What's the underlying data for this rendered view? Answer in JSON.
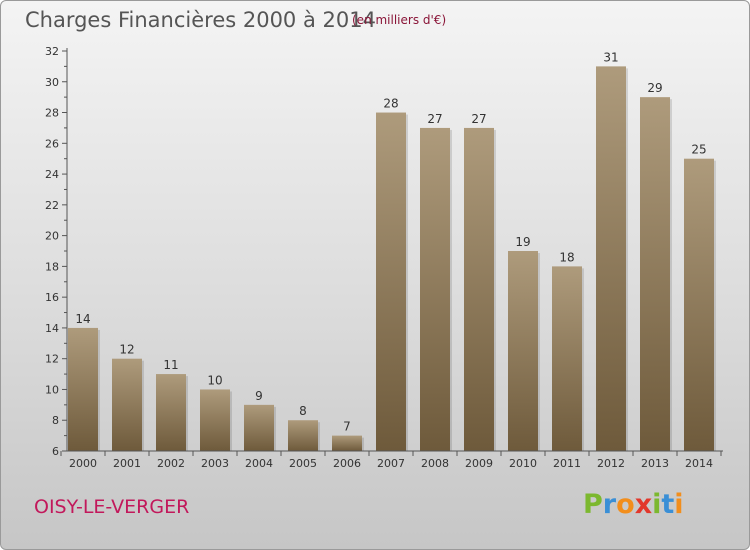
{
  "header": {
    "title": "Charges Financières 2000 à 2014",
    "subtitle": "(en milliers d'€)"
  },
  "footer": {
    "commune": "OISY-LE-VERGER",
    "brand_letters": [
      "P",
      "r",
      "o",
      "x",
      "i",
      "t",
      "i"
    ]
  },
  "colors": {
    "bar_top": "#ae9b7c",
    "bar_bottom": "#6e5a3b",
    "axis": "#555555",
    "commune_text": "#c2185b"
  },
  "chart_data": {
    "type": "bar",
    "title": "Charges Financières 2000 à 2014",
    "subtitle": "(en milliers d'€)",
    "categories": [
      "2000",
      "2001",
      "2002",
      "2003",
      "2004",
      "2005",
      "2006",
      "2007",
      "2008",
      "2009",
      "2010",
      "2011",
      "2012",
      "2013",
      "2014"
    ],
    "values": [
      14,
      12,
      11,
      10,
      9,
      8,
      7,
      28,
      27,
      27,
      19,
      18,
      31,
      29,
      25
    ],
    "ylim": [
      6,
      32
    ],
    "yticks": [
      6,
      8,
      10,
      12,
      14,
      16,
      18,
      20,
      22,
      24,
      26,
      28,
      30,
      32
    ],
    "grid": false,
    "xlabel": "",
    "ylabel": ""
  }
}
